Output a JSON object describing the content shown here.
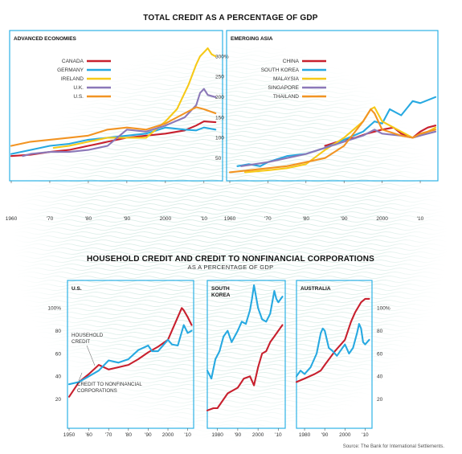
{
  "header": {
    "title": "TOTAL CREDIT AS A PERCENTAGE OF GDP",
    "section2_title": "HOUSEHOLD CREDIT AND CREDIT TO NONFINANCIAL CORPORATIONS",
    "section2_subtitle": "AS A PERCENTAGE OF GDP",
    "source": "Source: The Bank for International Settlements."
  },
  "colors": {
    "frame": "#2db2e6",
    "red": "#c8202e",
    "blue": "#27a9e1",
    "yellow": "#f6c918",
    "purple": "#8b78b8",
    "orange": "#f29423",
    "bg_pattern": "#cfe8e0"
  },
  "chart_data": [
    {
      "id": "advanced",
      "type": "line",
      "panel_title": "ADVANCED ECONOMIES",
      "xlim": [
        1960,
        2014
      ],
      "ylim": [
        0,
        320
      ],
      "x_ticks": [
        {
          "v": 1960,
          "l": "1960"
        },
        {
          "v": 1970,
          "l": "'70"
        },
        {
          "v": 1980,
          "l": "'80"
        },
        {
          "v": 1990,
          "l": "'90"
        },
        {
          "v": 2000,
          "l": "2000"
        },
        {
          "v": 2010,
          "l": "'10"
        }
      ],
      "y_ticks": [
        {
          "v": 50,
          "l": "50"
        },
        {
          "v": 100,
          "l": "100"
        },
        {
          "v": 150,
          "l": "150"
        },
        {
          "v": 200,
          "l": "200"
        },
        {
          "v": 250,
          "l": "250"
        },
        {
          "v": 300,
          "l": "300%"
        }
      ],
      "series": [
        {
          "name": "CANADA",
          "color": "#c8202e",
          "x": [
            1960,
            1965,
            1970,
            1975,
            1980,
            1985,
            1990,
            1995,
            2000,
            2005,
            2008,
            2010,
            2013
          ],
          "y": [
            55,
            58,
            65,
            70,
            80,
            90,
            100,
            105,
            110,
            118,
            130,
            140,
            138
          ]
        },
        {
          "name": "GERMANY",
          "color": "#27a9e1",
          "x": [
            1960,
            1965,
            1970,
            1975,
            1980,
            1985,
            1990,
            1995,
            2000,
            2005,
            2008,
            2010,
            2013
          ],
          "y": [
            60,
            70,
            80,
            85,
            95,
            100,
            105,
            110,
            125,
            120,
            118,
            125,
            120
          ]
        },
        {
          "name": "IRELAND",
          "color": "#f6c918",
          "x": [
            1971,
            1975,
            1980,
            1985,
            1990,
            1995,
            2000,
            2003,
            2006,
            2008,
            2009,
            2010,
            2011,
            2012,
            2013
          ],
          "y": [
            75,
            80,
            90,
            100,
            100,
            100,
            140,
            170,
            230,
            280,
            300,
            310,
            320,
            305,
            300
          ]
        },
        {
          "name": "U.K.",
          "color": "#8b78b8",
          "x": [
            1963,
            1965,
            1970,
            1975,
            1980,
            1985,
            1990,
            1995,
            2000,
            2005,
            2008,
            2009,
            2010,
            2011,
            2013
          ],
          "y": [
            55,
            60,
            65,
            65,
            70,
            80,
            120,
            115,
            130,
            150,
            180,
            210,
            220,
            205,
            200
          ]
        },
        {
          "name": "U.S.",
          "color": "#f29423",
          "x": [
            1960,
            1965,
            1970,
            1975,
            1980,
            1985,
            1990,
            1995,
            2000,
            2005,
            2008,
            2010,
            2013
          ],
          "y": [
            80,
            90,
            95,
            100,
            105,
            120,
            125,
            120,
            135,
            160,
            175,
            170,
            160
          ]
        }
      ]
    },
    {
      "id": "asia",
      "type": "line",
      "panel_title": "EMERGING ASIA",
      "xlim": [
        1960,
        2014
      ],
      "ylim": [
        0,
        320
      ],
      "x_ticks": [
        {
          "v": 1960,
          "l": "1960"
        },
        {
          "v": 1970,
          "l": "'70"
        },
        {
          "v": 1980,
          "l": "'80"
        },
        {
          "v": 1990,
          "l": "'90"
        },
        {
          "v": 2000,
          "l": "2000"
        },
        {
          "v": 2010,
          "l": "'10"
        }
      ],
      "y_ticks": [],
      "series": [
        {
          "name": "CHINA",
          "color": "#c8202e",
          "x": [
            1985,
            1990,
            1993,
            1996,
            1998,
            2000,
            2003,
            2005,
            2008,
            2010,
            2012,
            2014
          ],
          "y": [
            80,
            95,
            100,
            110,
            115,
            120,
            125,
            110,
            100,
            115,
            125,
            130
          ]
        },
        {
          "name": "SOUTH KOREA",
          "color": "#27a9e1",
          "x": [
            1962,
            1965,
            1968,
            1970,
            1975,
            1980,
            1985,
            1990,
            1995,
            1998,
            2000,
            2002,
            2005,
            2008,
            2010,
            2014
          ],
          "y": [
            30,
            35,
            30,
            40,
            55,
            60,
            75,
            95,
            115,
            140,
            135,
            170,
            155,
            190,
            185,
            200
          ]
        },
        {
          "name": "MALAYSIA",
          "color": "#f6c918",
          "x": [
            1964,
            1970,
            1975,
            1980,
            1985,
            1990,
            1995,
            1997,
            1998,
            2000,
            2005,
            2008,
            2010,
            2014
          ],
          "y": [
            15,
            20,
            25,
            35,
            70,
            100,
            140,
            170,
            175,
            140,
            115,
            100,
            105,
            125
          ]
        },
        {
          "name": "SINGAPORE",
          "color": "#8b78b8",
          "x": [
            1963,
            1970,
            1975,
            1980,
            1985,
            1990,
            1995,
            1998,
            2000,
            2005,
            2008,
            2010,
            2014
          ],
          "y": [
            30,
            40,
            50,
            60,
            75,
            90,
            105,
            120,
            110,
            105,
            100,
            105,
            115
          ]
        },
        {
          "name": "THAILAND",
          "color": "#f29423",
          "x": [
            1960,
            1965,
            1970,
            1975,
            1980,
            1985,
            1990,
            1995,
            1997,
            1998,
            2000,
            2005,
            2008,
            2010,
            2014
          ],
          "y": [
            15,
            20,
            25,
            30,
            40,
            50,
            80,
            140,
            170,
            160,
            120,
            105,
            100,
            110,
            120
          ]
        }
      ]
    },
    {
      "id": "us",
      "type": "line",
      "panel_title": "U.S.",
      "xlim": [
        1950,
        2013
      ],
      "ylim": [
        0,
        115
      ],
      "x_ticks": [
        {
          "v": 1950,
          "l": "1950"
        },
        {
          "v": 1960,
          "l": "'60"
        },
        {
          "v": 1970,
          "l": "'70"
        },
        {
          "v": 1980,
          "l": "'80"
        },
        {
          "v": 1990,
          "l": "'90"
        },
        {
          "v": 2000,
          "l": "2000"
        },
        {
          "v": 2010,
          "l": "'10"
        }
      ],
      "y_ticks": [
        {
          "v": 20,
          "l": "20"
        },
        {
          "v": 40,
          "l": "40"
        },
        {
          "v": 60,
          "l": "60"
        },
        {
          "v": 80,
          "l": "80"
        },
        {
          "v": 100,
          "l": "100%"
        }
      ],
      "annotations": {
        "household": [
          "HOUSEHOLD",
          "CREDIT"
        ],
        "corporate": [
          "CREDIT TO NONFINANCIAL",
          "CORPORATIONS"
        ]
      },
      "series": [
        {
          "name": "Household credit",
          "color": "#c8202e",
          "x": [
            1950,
            1955,
            1960,
            1965,
            1970,
            1975,
            1980,
            1985,
            1990,
            1995,
            2000,
            2005,
            2007,
            2008,
            2010,
            2012
          ],
          "y": [
            22,
            35,
            42,
            50,
            46,
            48,
            50,
            55,
            61,
            66,
            72,
            92,
            100,
            98,
            92,
            85
          ]
        },
        {
          "name": "Credit to nonfinancial corporations",
          "color": "#27a9e1",
          "x": [
            1950,
            1955,
            1960,
            1965,
            1970,
            1975,
            1980,
            1985,
            1990,
            1992,
            1995,
            2000,
            2002,
            2005,
            2008,
            2010,
            2012
          ],
          "y": [
            33,
            35,
            40,
            45,
            54,
            52,
            55,
            63,
            67,
            62,
            62,
            72,
            68,
            67,
            85,
            78,
            80
          ]
        }
      ]
    },
    {
      "id": "korea",
      "type": "line",
      "panel_title": [
        "SOUTH",
        "KOREA"
      ],
      "xlim": [
        1975,
        2013
      ],
      "ylim": [
        0,
        115
      ],
      "x_ticks": [
        {
          "v": 1980,
          "l": "1980"
        },
        {
          "v": 1990,
          "l": "'90"
        },
        {
          "v": 2000,
          "l": "2000"
        },
        {
          "v": 2010,
          "l": "'10"
        }
      ],
      "y_ticks": [],
      "series": [
        {
          "name": "Household credit",
          "color": "#c8202e",
          "x": [
            1975,
            1978,
            1980,
            1985,
            1990,
            1993,
            1996,
            1998,
            2000,
            2002,
            2004,
            2006,
            2008,
            2010,
            2012
          ],
          "y": [
            10,
            12,
            12,
            25,
            30,
            38,
            40,
            32,
            48,
            60,
            62,
            70,
            75,
            80,
            85
          ]
        },
        {
          "name": "Credit to nonfinancial corporations",
          "color": "#27a9e1",
          "x": [
            1975,
            1977,
            1979,
            1981,
            1983,
            1985,
            1987,
            1990,
            1992,
            1994,
            1996,
            1997,
            1998,
            2000,
            2002,
            2004,
            2006,
            2008,
            2009,
            2010,
            2012
          ],
          "y": [
            45,
            38,
            55,
            62,
            75,
            80,
            70,
            80,
            88,
            86,
            98,
            108,
            120,
            100,
            90,
            88,
            95,
            115,
            108,
            105,
            110
          ]
        }
      ]
    },
    {
      "id": "australia",
      "type": "line",
      "panel_title": "AUSTRALIA",
      "xlim": [
        1976,
        2013
      ],
      "ylim": [
        0,
        115
      ],
      "x_ticks": [
        {
          "v": 1980,
          "l": "1980"
        },
        {
          "v": 1990,
          "l": "'90"
        },
        {
          "v": 2000,
          "l": "2000"
        },
        {
          "v": 2010,
          "l": "'10"
        }
      ],
      "y_ticks": [
        {
          "v": 20,
          "l": "20"
        },
        {
          "v": 40,
          "l": "40"
        },
        {
          "v": 60,
          "l": "60"
        },
        {
          "v": 80,
          "l": "80"
        },
        {
          "v": 100,
          "l": "100%"
        }
      ],
      "series": [
        {
          "name": "Household credit",
          "color": "#c8202e",
          "x": [
            1976,
            1980,
            1985,
            1988,
            1990,
            1995,
            2000,
            2003,
            2005,
            2008,
            2010,
            2012
          ],
          "y": [
            35,
            38,
            42,
            45,
            50,
            62,
            72,
            88,
            96,
            105,
            108,
            108
          ]
        },
        {
          "name": "Credit to nonfinancial corporations",
          "color": "#27a9e1",
          "x": [
            1976,
            1978,
            1980,
            1983,
            1986,
            1988,
            1989,
            1990,
            1992,
            1994,
            1996,
            1998,
            2000,
            2002,
            2004,
            2006,
            2007,
            2008,
            2009,
            2010,
            2012
          ],
          "y": [
            40,
            45,
            42,
            48,
            60,
            78,
            82,
            80,
            65,
            62,
            58,
            63,
            68,
            60,
            65,
            78,
            86,
            82,
            70,
            68,
            72
          ]
        }
      ]
    }
  ]
}
